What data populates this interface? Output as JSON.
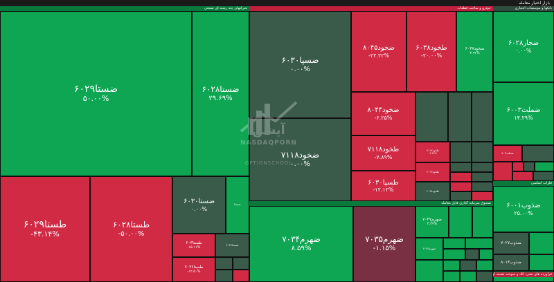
{
  "header": {
    "title": "بازار اختیار معامله"
  },
  "sectors": {
    "s1": "شرکتهای چند رشته ای صنعتی",
    "s2": "خودرو و ساخت قطعات",
    "s3": "بانکها و موسسات اعتباری",
    "s4": "فلزات اساسی",
    "s5": "صندوق سرمایه گذاری قابل معامله",
    "s6": "فرآورده های نفتی، کک و سوخت هسته ای"
  },
  "cells": {
    "c1": {
      "sym": "ضستا۶۰۲۹",
      "pct": "۵۰.۰۰%"
    },
    "c2": {
      "sym": "ضستا۶۰۲۸",
      "pct": "۲۹.۶۹%"
    },
    "c3": {
      "sym": "طستا۶۰۲۹",
      "pct": "-۴۳.۱۴%"
    },
    "c4": {
      "sym": "طستا۶۰۲۸",
      "pct": "-۵۰.۰۰%"
    },
    "c5": {
      "sym": "ضستا۶۰۳۰",
      "pct": "۰.۰۰%"
    },
    "c6": {
      "sym": "ضستا",
      "pct": ""
    },
    "c7": {
      "sym": "طستا۶۰۳",
      "pct": "-۱۵.۱۱%"
    },
    "c8": {
      "sym": "طستا۷۰۳۶",
      "pct": "-۱۲.۵۰%"
    },
    "c9": {
      "sym": "ضستا۷۰۳۶",
      "pct": ""
    },
    "c10": {
      "sym": "ضسپا۶۰۳۰",
      "pct": "۰.۰۰%"
    },
    "c11": {
      "sym": "ضخود۷۱۱۸",
      "pct": "۰.۰۰%"
    },
    "c12": {
      "sym": "ضخود۸۰۴۵",
      "pct": "-۲۲.۲۲%"
    },
    "c13": {
      "sym": "طخود۶۰۳۸",
      "pct": "-۲۰.۰۰%"
    },
    "c14": {
      "sym": "ضخود۶۰۳۷",
      "pct": "۳.۹۲%"
    },
    "c15": {
      "sym": "ضخود۸۰۴۴",
      "pct": "-۶.۲۵%"
    },
    "c16": {
      "sym": "طخود۷۱۱۸",
      "pct": "-۷.۸۹%"
    },
    "c17": {
      "sym": "طسپا۶۰۳۰",
      "pct": "-۱۲.۱۲%"
    },
    "c18": {
      "sym": "ضجار۶۰۲۸",
      "pct": "۰.۰۰%"
    },
    "c19": {
      "sym": "ضملت۶۰۰۳",
      "pct": "۱۴.۲۹%"
    },
    "c20": {
      "sym": "ضذوب۶۰۰۱",
      "pct": "۲۵.۰۰%"
    },
    "c21": {
      "sym": "ضذوب۷۰۲۷",
      "pct": ""
    },
    "c22": {
      "sym": "ضذوب۸۰۱۴",
      "pct": ""
    },
    "c23": {
      "sym": "ضهرم۷۰۳۴",
      "pct": "۸.۵۹%"
    },
    "c24": {
      "sym": "ضهرم۷۰۳۵",
      "pct": "-۱.۱۵%"
    },
    "c25": {
      "sym": "ضهرم۷۰۴۷",
      "pct": "۳.۳۹%"
    },
    "c26": {
      "sym": "ضهرم۷۰۳۶",
      "pct": ""
    },
    "c27": {
      "sym": "طخود۷۱۱۷",
      "pct": "-۳.۳۳%"
    },
    "c28": {
      "sym": "طخود۷۰۱۳",
      "pct": ""
    },
    "c29": {
      "sym": "طخود۶۰۳۸",
      "pct": ""
    },
    "c30": {
      "sym": "ضملت۷۰۳",
      "pct": ""
    }
  },
  "watermark": {
    "fa": "آپشن",
    "en1": "NASDAQPORN",
    "en2": "OPTIONSCHOOL"
  }
}
